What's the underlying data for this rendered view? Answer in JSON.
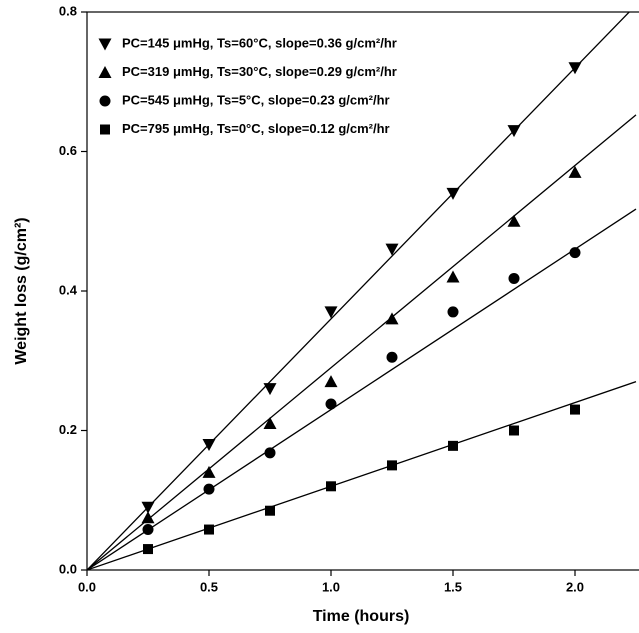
{
  "chart_data": {
    "type": "scatter",
    "x_label": "Time (hours)",
    "y_label": "Weight loss (g/cm²)",
    "x": [
      0.25,
      0.5,
      0.75,
      1.0,
      1.25,
      1.5,
      1.75,
      2.0
    ],
    "xlim": [
      0,
      2.25
    ],
    "ylim": [
      0,
      0.8
    ],
    "xticks": [
      {
        "value": 0,
        "label": "0.0"
      },
      0.5,
      {
        "value": 1,
        "label": "1.0"
      },
      1.5,
      {
        "value": 2,
        "label": "2.0"
      }
    ],
    "yticks": [
      {
        "value": 0,
        "label": "0.0"
      },
      0.2,
      0.4,
      0.6,
      0.8
    ],
    "legend": "upper left",
    "series": [
      {
        "name": "PC=145 μmHg, Ts=60°C, slope=0.36 g/cm²/hr",
        "marker": "triangle-down",
        "color": "#000000",
        "slope": 0.36,
        "values": [
          0.09,
          0.18,
          0.26,
          0.37,
          0.46,
          0.54,
          0.63,
          0.72
        ]
      },
      {
        "name": "PC=319 μmHg, Ts=30°C, slope=0.29 g/cm²/hr",
        "marker": "triangle-up",
        "color": "#000000",
        "slope": 0.29,
        "values": [
          0.075,
          0.14,
          0.21,
          0.27,
          0.36,
          0.42,
          0.5,
          0.57
        ]
      },
      {
        "name": "PC=545 μmHg, Ts=5°C,  slope=0.23 g/cm²/hr",
        "marker": "circle",
        "color": "#000000",
        "slope": 0.23,
        "values": [
          0.058,
          0.116,
          0.168,
          0.238,
          0.305,
          0.37,
          0.418,
          0.455
        ]
      },
      {
        "name": "PC=795 μmHg, Ts=0°C,  slope=0.12 g/cm²/hr",
        "marker": "square",
        "color": "#000000",
        "slope": 0.12,
        "values": [
          0.03,
          0.058,
          0.085,
          0.12,
          0.15,
          0.178,
          0.2,
          0.23
        ]
      }
    ]
  }
}
